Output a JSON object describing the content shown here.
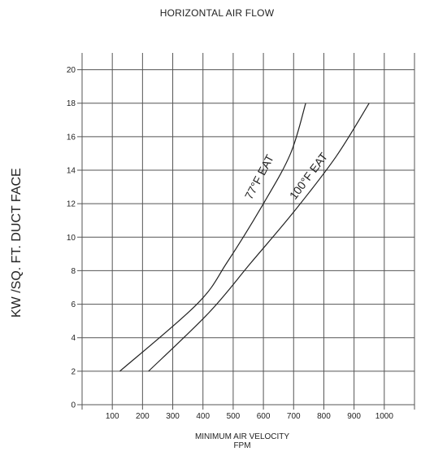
{
  "chart_data": {
    "type": "line",
    "title": "HORIZONTAL AIR FLOW",
    "ylabel": "KW /SQ. FT. DUCT FACE",
    "xlabel_line1": "MINIMUM AIR VELOCITY",
    "xlabel_line2": "FPM",
    "xlim": [
      0,
      1100
    ],
    "ylim": [
      0,
      21
    ],
    "x_ticks": [
      100,
      200,
      300,
      400,
      500,
      600,
      700,
      800,
      900,
      1000
    ],
    "y_ticks": [
      0,
      2,
      4,
      6,
      8,
      10,
      12,
      14,
      16,
      18,
      20
    ],
    "grid": true,
    "series": [
      {
        "name": "77°F EAT",
        "points": [
          [
            125,
            2
          ],
          [
            380,
            6
          ],
          [
            480,
            8.5
          ],
          [
            600,
            12
          ],
          [
            690,
            15
          ],
          [
            740,
            18
          ]
        ]
      },
      {
        "name": "100°F EAT",
        "points": [
          [
            220,
            2
          ],
          [
            420,
            5.5
          ],
          [
            560,
            8.5
          ],
          [
            700,
            11.5
          ],
          [
            840,
            14.8
          ],
          [
            950,
            18
          ]
        ]
      }
    ],
    "series_colors": [
      "#222222",
      "#222222"
    ]
  }
}
